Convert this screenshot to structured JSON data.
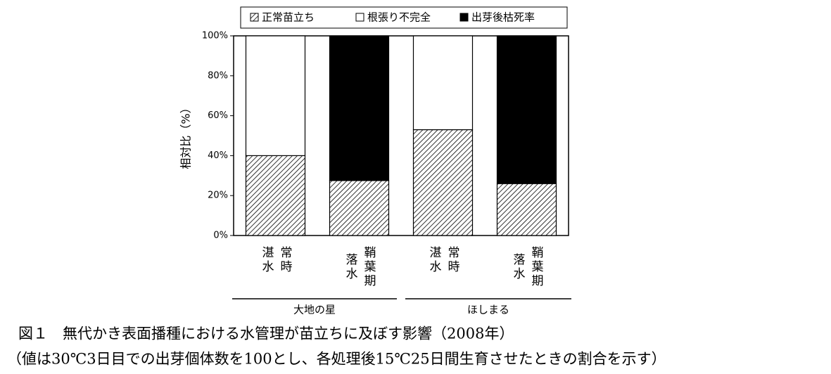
{
  "chart_data": {
    "type": "stacked_bar",
    "categories": [
      "常時湛水",
      "鞘葉期落水",
      "常時湛水",
      "鞘葉期落水"
    ],
    "groups": [
      {
        "label": "大地の星",
        "span": [
          0,
          1
        ]
      },
      {
        "label": "ほしまる",
        "span": [
          2,
          3
        ]
      }
    ],
    "series": [
      {
        "name": "正常苗立ち",
        "color": "#000000",
        "pattern": "hatch",
        "values": [
          40,
          27.5,
          53,
          26
        ]
      },
      {
        "name": "根張り不完全",
        "color": "#ffffff",
        "values": [
          60,
          0,
          47,
          0
        ]
      },
      {
        "name": "出芽後枯死率",
        "color": "#000000",
        "values": [
          0,
          72.5,
          0,
          74
        ]
      }
    ],
    "y_label": "相対比（%）",
    "ylim": [
      0,
      100
    ],
    "yticks": [
      {
        "value": 0,
        "label": "0%"
      },
      {
        "value": 20,
        "label": "20%"
      },
      {
        "value": 40,
        "label": "40%"
      },
      {
        "value": 60,
        "label": "60%"
      },
      {
        "value": 80,
        "label": "80%"
      },
      {
        "value": 100,
        "label": "100%"
      }
    ],
    "legend": "top",
    "caption": [
      "図１　無代かき表面播種における水管理が苗立ちに及ぼす影響（2008年）",
      "（値は30℃3日目での出芽個体数を100とし、各処理後15℃25日間生育させたときの割合を示す）"
    ]
  }
}
